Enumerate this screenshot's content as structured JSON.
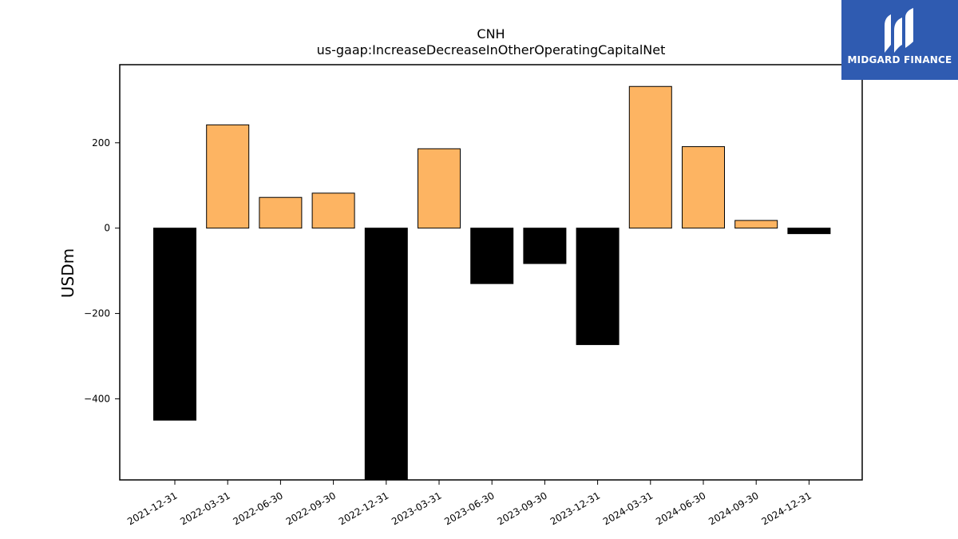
{
  "chart_data": {
    "type": "bar",
    "title": "CNH",
    "subtitle": "us-gaap:IncreaseDecreaseInOtherOperatingCapitalNet",
    "xlabel": "",
    "ylabel": "USDm",
    "categories": [
      "2021-12-31",
      "2022-03-31",
      "2022-06-30",
      "2022-09-30",
      "2022-12-31",
      "2023-03-31",
      "2023-06-30",
      "2023-09-30",
      "2023-12-31",
      "2024-03-31",
      "2024-06-30",
      "2024-09-30",
      "2024-12-31"
    ],
    "values": [
      -450,
      242,
      72,
      82,
      -600,
      186,
      -130,
      -83,
      -273,
      332,
      191,
      18,
      -13
    ],
    "ylim": [
      -590,
      383
    ],
    "yticks": [
      -400,
      -200,
      0,
      200
    ],
    "ytick_labels": [
      "−400",
      "−200",
      "0",
      "200"
    ],
    "colors": {
      "positive": "#fdb462",
      "negative": "#000000",
      "edge": "#000000"
    },
    "grid": false
  },
  "logo": {
    "text": "MIDGARD FINANCE",
    "color": "#2f5bb1"
  }
}
